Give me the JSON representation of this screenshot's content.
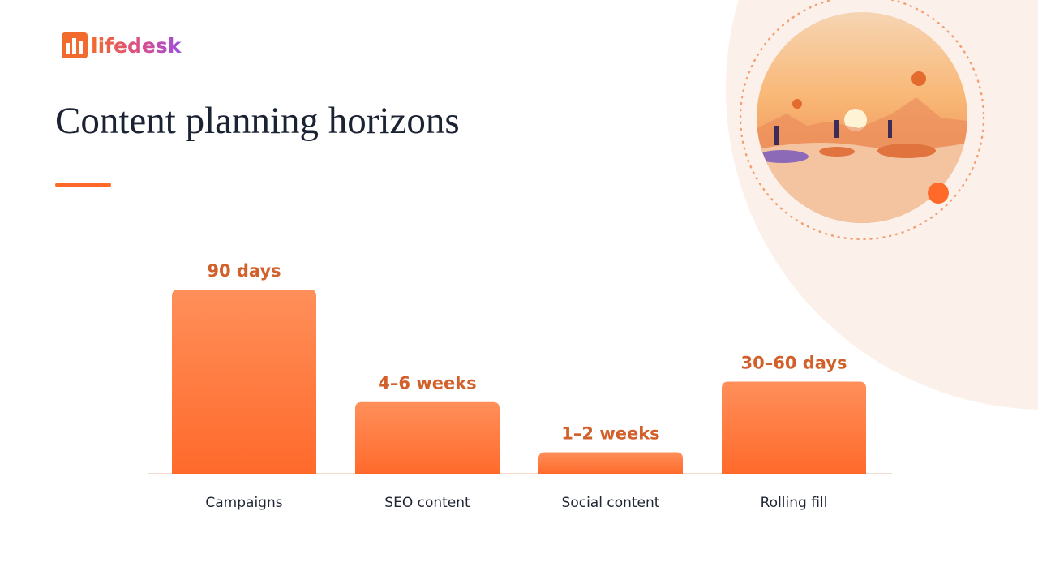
{
  "logo": "lifedesk",
  "chart_data": {
    "type": "bar",
    "title": "Content planning horizons",
    "categories": [
      "Campaigns",
      "SEO content",
      "Social content",
      "Rolling fill"
    ],
    "values": [
      90,
      35,
      10.5,
      45
    ],
    "value_labels": [
      "90 days",
      "4–6 weeks",
      "1–2 weeks",
      "30–60 days"
    ]
  }
}
